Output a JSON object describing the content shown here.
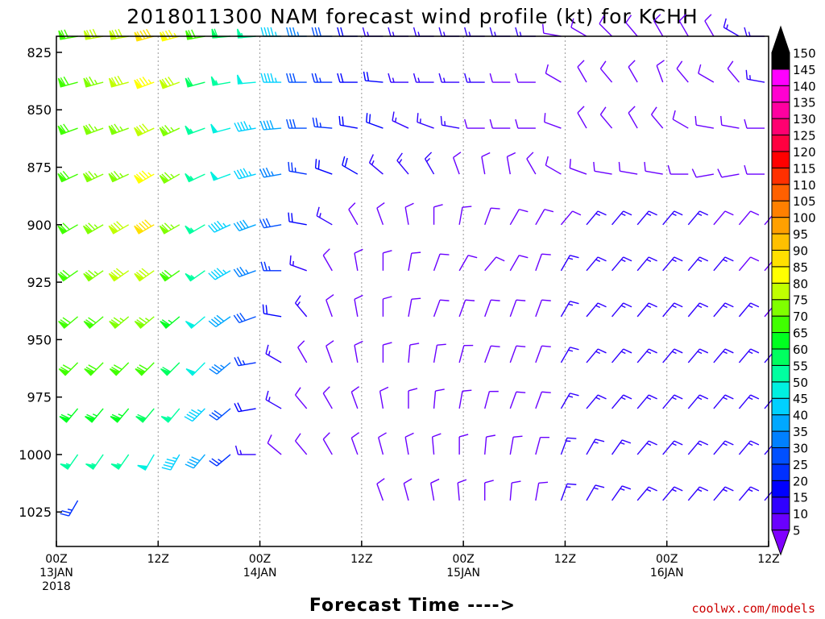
{
  "title": "2018011300 NAM forecast wind profile (kt) for KCHH",
  "xlabel": "Forecast Time ---->",
  "credit": "coolwx.com/models",
  "chart_data": {
    "type": "wind-barb-profile",
    "title": "2018011300 NAM forecast wind profile (kt) for KCHH",
    "xlabel": "Forecast Time ---->",
    "ylabel": "",
    "y_unit": "hPa",
    "y_ticks": [
      825,
      850,
      875,
      900,
      925,
      950,
      975,
      1000,
      1025
    ],
    "ylim": [
      1040,
      818
    ],
    "x_ticks": [
      {
        "hour": 0,
        "label": "00Z",
        "date": "13JAN",
        "year": "2018"
      },
      {
        "hour": 12,
        "label": "12Z",
        "date": "",
        "year": ""
      },
      {
        "hour": 24,
        "label": "00Z",
        "date": "14JAN",
        "year": ""
      },
      {
        "hour": 36,
        "label": "12Z",
        "date": "",
        "year": ""
      },
      {
        "hour": 48,
        "label": "00Z",
        "date": "15JAN",
        "year": ""
      },
      {
        "hour": 60,
        "label": "12Z",
        "date": "",
        "year": ""
      },
      {
        "hour": 72,
        "label": "00Z",
        "date": "16JAN",
        "year": ""
      },
      {
        "hour": 84,
        "label": "12Z",
        "date": "",
        "year": ""
      }
    ],
    "xlim": [
      0,
      84
    ],
    "grid": "vertical dotted at 12Z and 00Z",
    "forecast_hours": [
      3,
      6,
      9,
      12,
      15,
      18,
      21,
      24,
      27,
      30,
      33,
      36,
      39,
      42,
      45,
      48,
      51,
      54,
      57,
      60,
      63,
      66,
      69,
      72,
      75,
      78,
      81,
      84
    ],
    "levels": [
      {
        "p": 818,
        "speeds": [
          70,
          80,
          80,
          90,
          85,
          70,
          60,
          55,
          45,
          35,
          30,
          20,
          15,
          15,
          15,
          15,
          15,
          15,
          15,
          10,
          10,
          10,
          10,
          10,
          10,
          10,
          15,
          15
        ],
        "dirs": [
          260,
          260,
          260,
          255,
          255,
          260,
          265,
          265,
          270,
          270,
          270,
          270,
          270,
          270,
          270,
          270,
          270,
          270,
          270,
          280,
          300,
          315,
          320,
          330,
          330,
          330,
          300,
          270
        ]
      },
      {
        "p": 838,
        "speeds": [
          70,
          75,
          80,
          85,
          80,
          60,
          55,
          50,
          45,
          30,
          25,
          20,
          20,
          15,
          15,
          15,
          15,
          10,
          10,
          10,
          10,
          10,
          10,
          10,
          10,
          10,
          10,
          15
        ],
        "dirs": [
          255,
          255,
          255,
          250,
          250,
          255,
          260,
          265,
          270,
          270,
          270,
          270,
          275,
          270,
          270,
          270,
          270,
          270,
          270,
          300,
          330,
          320,
          330,
          340,
          320,
          300,
          320,
          280
        ]
      },
      {
        "p": 858,
        "speeds": [
          70,
          75,
          75,
          80,
          75,
          55,
          50,
          45,
          40,
          30,
          25,
          20,
          20,
          15,
          15,
          15,
          10,
          10,
          10,
          10,
          10,
          10,
          10,
          10,
          10,
          10,
          10,
          10
        ],
        "dirs": [
          250,
          250,
          250,
          245,
          245,
          250,
          255,
          260,
          265,
          270,
          275,
          280,
          290,
          295,
          290,
          280,
          270,
          270,
          270,
          290,
          330,
          320,
          330,
          320,
          300,
          280,
          280,
          270
        ]
      },
      {
        "p": 878,
        "speeds": [
          70,
          75,
          75,
          85,
          75,
          55,
          50,
          45,
          35,
          25,
          20,
          20,
          15,
          15,
          15,
          10,
          10,
          10,
          10,
          10,
          10,
          10,
          10,
          10,
          10,
          10,
          10,
          10
        ],
        "dirs": [
          245,
          245,
          245,
          240,
          240,
          245,
          250,
          255,
          260,
          280,
          290,
          300,
          310,
          320,
          330,
          340,
          350,
          350,
          330,
          300,
          290,
          280,
          280,
          280,
          270,
          260,
          260,
          270
        ]
      },
      {
        "p": 900,
        "speeds": [
          70,
          75,
          80,
          90,
          75,
          55,
          45,
          40,
          30,
          20,
          15,
          10,
          10,
          10,
          10,
          10,
          10,
          10,
          10,
          10,
          15,
          15,
          15,
          15,
          15,
          10,
          10,
          10
        ],
        "dirs": [
          240,
          240,
          240,
          240,
          240,
          240,
          245,
          250,
          260,
          280,
          300,
          330,
          340,
          350,
          0,
          10,
          20,
          30,
          30,
          40,
          40,
          40,
          40,
          40,
          40,
          40,
          40,
          40
        ]
      },
      {
        "p": 920,
        "speeds": [
          70,
          75,
          80,
          80,
          70,
          55,
          45,
          35,
          25,
          15,
          10,
          10,
          10,
          10,
          10,
          10,
          10,
          10,
          10,
          15,
          15,
          15,
          15,
          15,
          15,
          15,
          10,
          10
        ],
        "dirs": [
          235,
          235,
          235,
          235,
          235,
          235,
          240,
          250,
          270,
          290,
          330,
          350,
          0,
          10,
          20,
          30,
          40,
          30,
          20,
          30,
          40,
          40,
          40,
          40,
          40,
          40,
          40,
          40
        ]
      },
      {
        "p": 940,
        "speeds": [
          70,
          70,
          75,
          75,
          65,
          50,
          40,
          30,
          20,
          15,
          10,
          10,
          10,
          10,
          10,
          10,
          10,
          10,
          10,
          15,
          15,
          15,
          15,
          15,
          15,
          15,
          15,
          10
        ],
        "dirs": [
          230,
          230,
          230,
          230,
          230,
          230,
          235,
          250,
          280,
          320,
          340,
          350,
          0,
          10,
          20,
          20,
          20,
          20,
          20,
          30,
          40,
          40,
          40,
          40,
          40,
          40,
          40,
          40
        ]
      },
      {
        "p": 960,
        "speeds": [
          70,
          70,
          70,
          70,
          60,
          50,
          35,
          25,
          15,
          10,
          10,
          10,
          10,
          10,
          10,
          10,
          10,
          10,
          10,
          15,
          15,
          15,
          15,
          15,
          15,
          15,
          15,
          15
        ],
        "dirs": [
          225,
          225,
          225,
          225,
          225,
          225,
          230,
          260,
          300,
          330,
          340,
          350,
          0,
          5,
          10,
          15,
          20,
          20,
          20,
          30,
          40,
          40,
          40,
          40,
          40,
          40,
          40,
          40
        ]
      },
      {
        "p": 980,
        "speeds": [
          65,
          65,
          65,
          60,
          55,
          45,
          30,
          20,
          15,
          10,
          10,
          10,
          10,
          10,
          10,
          10,
          10,
          10,
          10,
          15,
          15,
          15,
          15,
          15,
          15,
          15,
          15,
          15
        ],
        "dirs": [
          220,
          220,
          220,
          220,
          220,
          225,
          230,
          260,
          300,
          320,
          330,
          340,
          350,
          0,
          5,
          10,
          15,
          20,
          20,
          30,
          40,
          40,
          40,
          40,
          40,
          40,
          40,
          40
        ]
      },
      {
        "p": 1000,
        "speeds": [
          55,
          55,
          55,
          50,
          45,
          40,
          25,
          15,
          10,
          10,
          10,
          10,
          10,
          10,
          10,
          10,
          10,
          10,
          10,
          15,
          15,
          15,
          15,
          15,
          15,
          15,
          15,
          15
        ],
        "dirs": [
          215,
          215,
          215,
          210,
          210,
          220,
          230,
          270,
          310,
          320,
          330,
          340,
          345,
          350,
          355,
          0,
          5,
          10,
          15,
          20,
          30,
          35,
          40,
          40,
          40,
          40,
          40,
          40
        ]
      },
      {
        "p": 1020,
        "speeds": [
          25,
          0,
          0,
          0,
          0,
          0,
          0,
          0,
          0,
          0,
          0,
          0,
          10,
          10,
          10,
          10,
          10,
          10,
          10,
          15,
          15,
          15,
          15,
          15,
          15,
          15,
          15,
          15
        ],
        "dirs": [
          210,
          0,
          0,
          0,
          0,
          0,
          0,
          0,
          0,
          0,
          0,
          0,
          340,
          345,
          350,
          355,
          0,
          5,
          10,
          20,
          30,
          35,
          40,
          40,
          40,
          40,
          40,
          40
        ]
      }
    ],
    "colorbar": {
      "unit": "kt",
      "labels": [
        5,
        10,
        15,
        20,
        25,
        30,
        35,
        40,
        45,
        50,
        55,
        60,
        65,
        70,
        75,
        80,
        85,
        90,
        95,
        100,
        105,
        110,
        115,
        120,
        125,
        130,
        135,
        140,
        145,
        150
      ],
      "colors": [
        "#8000ff",
        "#6a00ff",
        "#3000ff",
        "#0000ff",
        "#0030ff",
        "#0050ff",
        "#0080ff",
        "#00a8ff",
        "#00d0ff",
        "#00f0e0",
        "#00ffa0",
        "#00ff60",
        "#00ff20",
        "#40ff00",
        "#80ff00",
        "#c0ff00",
        "#ffff00",
        "#ffe000",
        "#ffc000",
        "#ffa000",
        "#ff8000",
        "#ff6000",
        "#ff3000",
        "#ff0000",
        "#ff0040",
        "#ff0070",
        "#ff00a0",
        "#ff00d0",
        "#ff00ff",
        "#000000"
      ]
    }
  }
}
